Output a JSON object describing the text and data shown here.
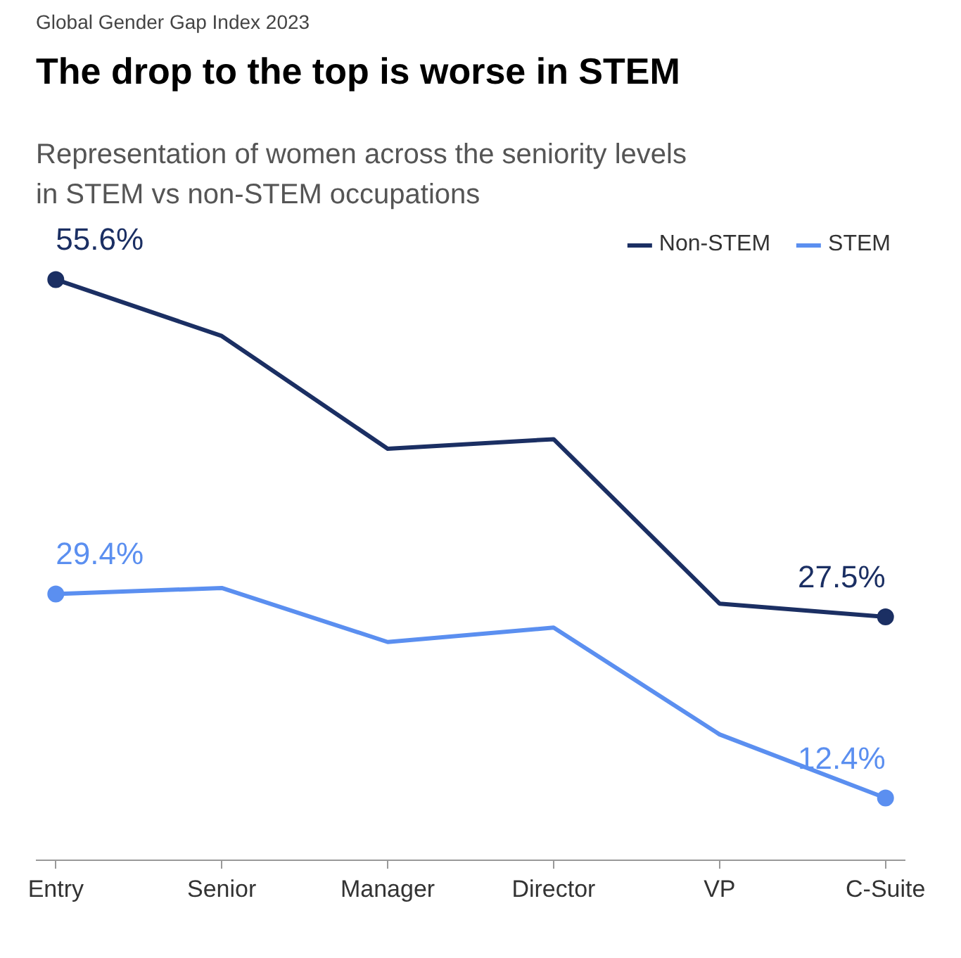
{
  "chart_data": {
    "type": "line",
    "annotations": [
      "Global Gender Gap Index 2023"
    ],
    "title": "The drop to the top is worse in STEM",
    "subtitle": "Representation of women across the seniority levels in STEM vs non-STEM occupations",
    "categories": [
      "Entry",
      "Senior",
      "Manager",
      "Director",
      "VP",
      "C-Suite"
    ],
    "series": [
      {
        "name": "Non-STEM",
        "color": "#1b2f63",
        "values": [
          55.6,
          50.9,
          41.5,
          42.3,
          28.6,
          27.5
        ],
        "value_labels": [
          "55.6%",
          null,
          null,
          null,
          null,
          "27.5%"
        ]
      },
      {
        "name": "STEM",
        "color": "#5b8ff0",
        "values": [
          29.4,
          29.9,
          25.4,
          26.6,
          17.7,
          12.4
        ],
        "value_labels": [
          "29.4%",
          null,
          null,
          null,
          null,
          "12.4%"
        ]
      }
    ],
    "line_style": "solid",
    "grid": false,
    "legend": "top right",
    "tick_labels": "x"
  }
}
